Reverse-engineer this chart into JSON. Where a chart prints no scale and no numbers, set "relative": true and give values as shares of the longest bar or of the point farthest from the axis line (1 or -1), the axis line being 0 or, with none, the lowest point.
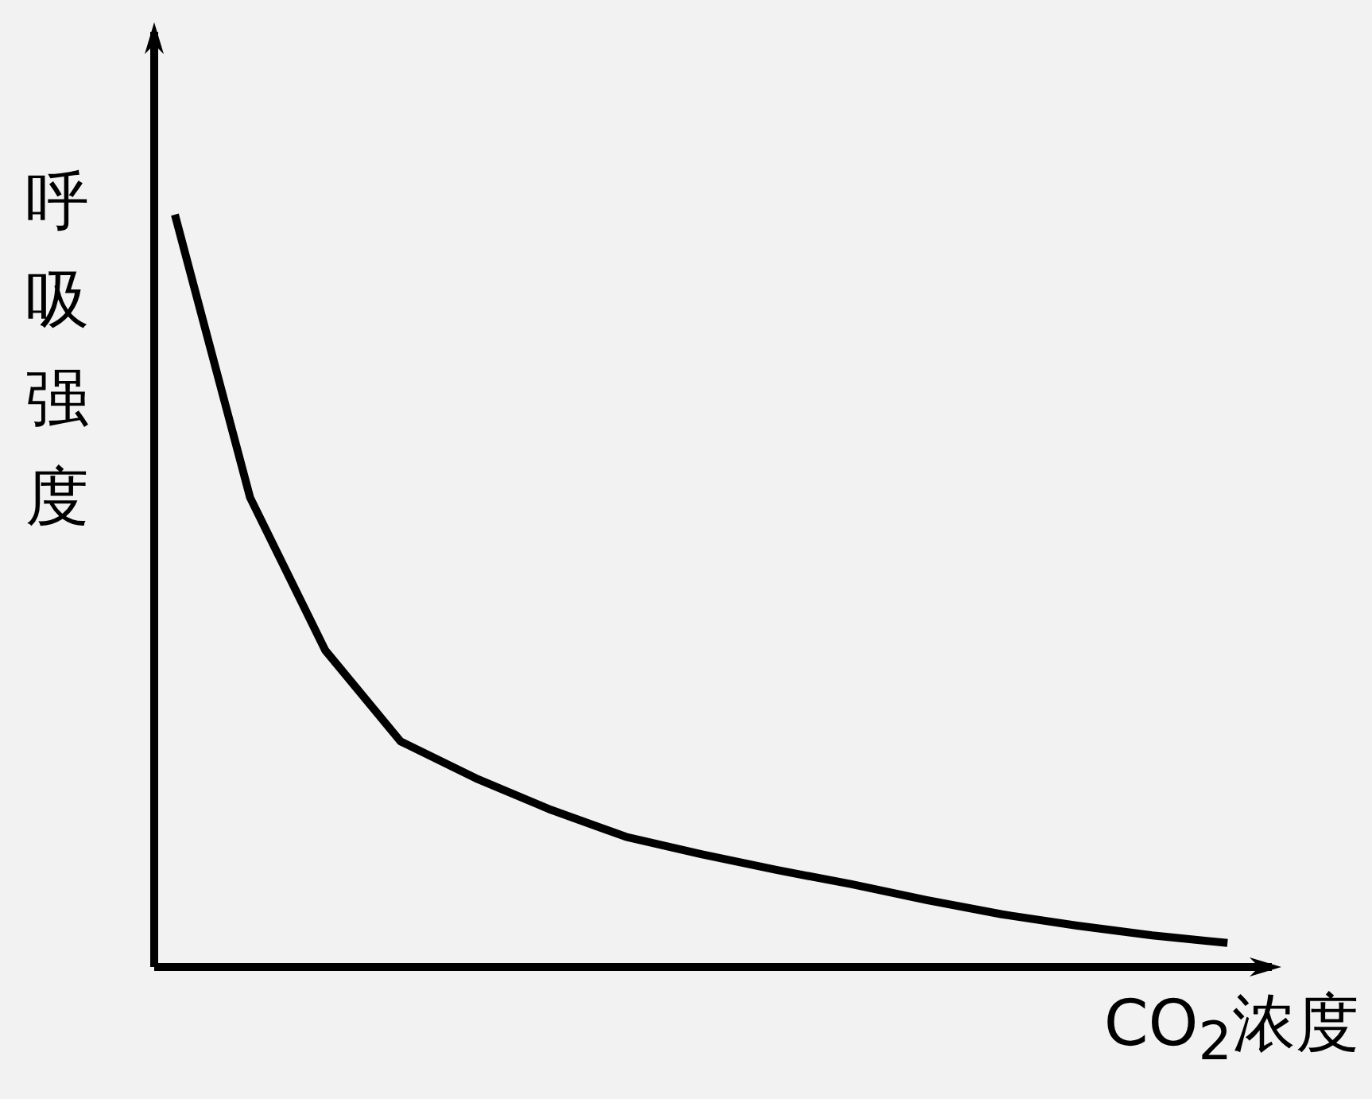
{
  "chart_data": {
    "type": "line",
    "relative": true,
    "xlabel": "CO$_{2}$浓度",
    "ylabel": "呼吸强度",
    "marker": "none",
    "grid": false,
    "legend": false,
    "categories": [
      null,
      null,
      null,
      null,
      null,
      null,
      null,
      null,
      null,
      null,
      null,
      null,
      null,
      null,
      null
    ],
    "series": [
      {
        "color": "#000000",
        "values": [
          1,
          0.624,
          0.421,
          0.3,
          0.251,
          0.209,
          0.173,
          0.15,
          0.129,
          0.11,
          0.089,
          0.07,
          0.055,
          0.042,
          0.032
        ]
      }
    ]
  }
}
